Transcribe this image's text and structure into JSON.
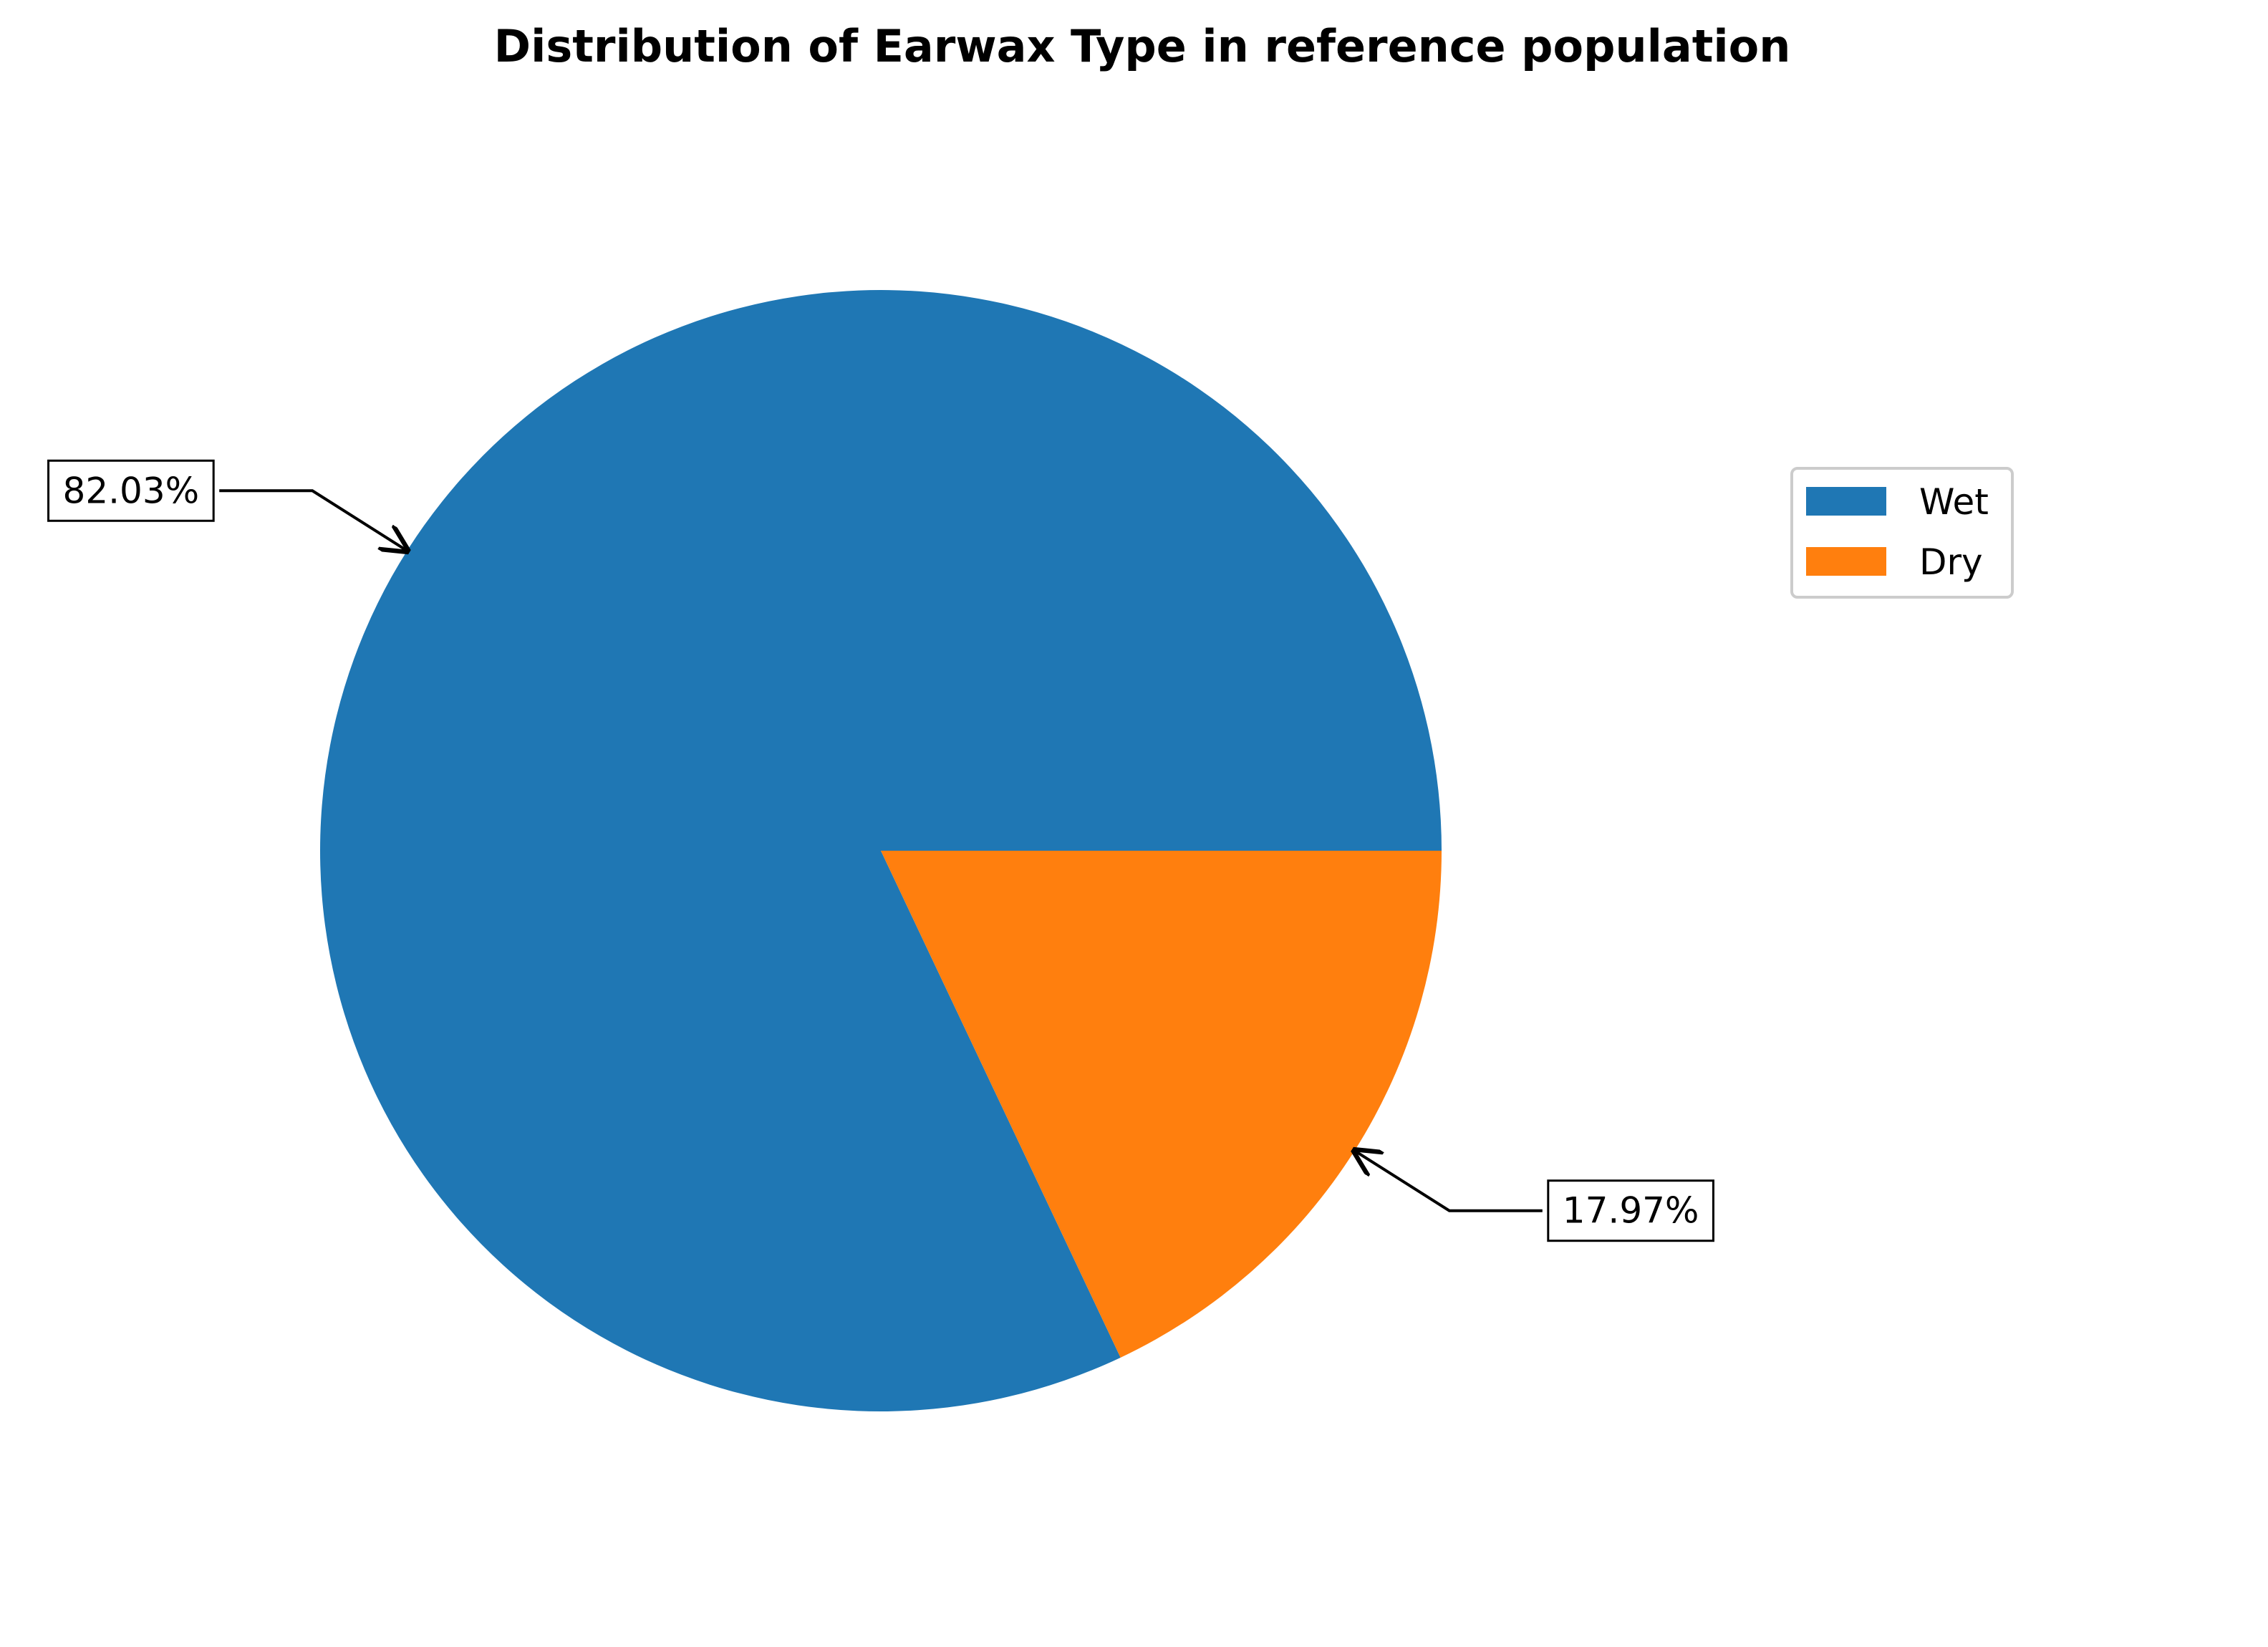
{
  "chart_data": {
    "type": "pie",
    "title": "Distribution of Earwax Type in reference population",
    "categories": [
      "Wet",
      "Dry"
    ],
    "values": [
      82.03,
      17.97
    ],
    "labels": [
      "82.03%",
      "17.97%"
    ],
    "colors": [
      "#1f77b4",
      "#ff7f0e"
    ],
    "start_angle_deg": 0,
    "direction": "counterclockwise",
    "legend": {
      "placement": "right",
      "entries": [
        "Wet",
        "Dry"
      ]
    }
  }
}
